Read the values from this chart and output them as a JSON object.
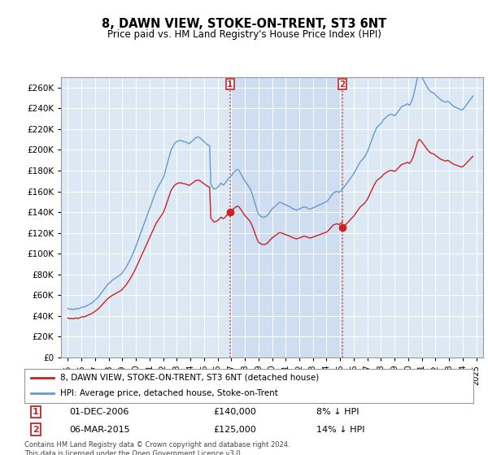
{
  "title": "8, DAWN VIEW, STOKE-ON-TRENT, ST3 6NT",
  "subtitle": "Price paid vs. HM Land Registry's House Price Index (HPI)",
  "ylim": [
    0,
    270000
  ],
  "yticks": [
    0,
    20000,
    40000,
    60000,
    80000,
    100000,
    120000,
    140000,
    160000,
    180000,
    200000,
    220000,
    240000,
    260000
  ],
  "xlim_start": 1994.5,
  "xlim_end": 2025.5,
  "bg_color": "#dce9f5",
  "grid_color": "#ffffff",
  "hpi_color": "#6699cc",
  "price_color": "#cc2222",
  "shade_color": "#dce9f5",
  "transaction1_year": 2006.917,
  "transaction1_price": 140000,
  "transaction2_year": 2015.17,
  "transaction2_price": 125000,
  "legend_line1": "8, DAWN VIEW, STOKE-ON-TRENT, ST3 6NT (detached house)",
  "legend_line2": "HPI: Average price, detached house, Stoke-on-Trent",
  "note1_label": "1",
  "note1_date": "01-DEC-2006",
  "note1_price": "£140,000",
  "note1_pct": "8% ↓ HPI",
  "note2_label": "2",
  "note2_date": "06-MAR-2015",
  "note2_price": "£125,000",
  "note2_pct": "14% ↓ HPI",
  "footer": "Contains HM Land Registry data © Crown copyright and database right 2024.\nThis data is licensed under the Open Government Licence v3.0.",
  "hpi_data": {
    "years": [
      1995.0,
      1995.083,
      1995.167,
      1995.25,
      1995.333,
      1995.417,
      1995.5,
      1995.583,
      1995.667,
      1995.75,
      1995.833,
      1995.917,
      1996.0,
      1996.083,
      1996.167,
      1996.25,
      1996.333,
      1996.417,
      1996.5,
      1996.583,
      1996.667,
      1996.75,
      1996.833,
      1996.917,
      1997.0,
      1997.083,
      1997.167,
      1997.25,
      1997.333,
      1997.417,
      1997.5,
      1997.583,
      1997.667,
      1997.75,
      1997.833,
      1997.917,
      1998.0,
      1998.083,
      1998.167,
      1998.25,
      1998.333,
      1998.417,
      1998.5,
      1998.583,
      1998.667,
      1998.75,
      1998.833,
      1998.917,
      1999.0,
      1999.083,
      1999.167,
      1999.25,
      1999.333,
      1999.417,
      1999.5,
      1999.583,
      1999.667,
      1999.75,
      1999.833,
      1999.917,
      2000.0,
      2000.083,
      2000.167,
      2000.25,
      2000.333,
      2000.417,
      2000.5,
      2000.583,
      2000.667,
      2000.75,
      2000.833,
      2000.917,
      2001.0,
      2001.083,
      2001.167,
      2001.25,
      2001.333,
      2001.417,
      2001.5,
      2001.583,
      2001.667,
      2001.75,
      2001.833,
      2001.917,
      2002.0,
      2002.083,
      2002.167,
      2002.25,
      2002.333,
      2002.417,
      2002.5,
      2002.583,
      2002.667,
      2002.75,
      2002.833,
      2002.917,
      2003.0,
      2003.083,
      2003.167,
      2003.25,
      2003.333,
      2003.417,
      2003.5,
      2003.583,
      2003.667,
      2003.75,
      2003.833,
      2003.917,
      2004.0,
      2004.083,
      2004.167,
      2004.25,
      2004.333,
      2004.417,
      2004.5,
      2004.583,
      2004.667,
      2004.75,
      2004.833,
      2004.917,
      2005.0,
      2005.083,
      2005.167,
      2005.25,
      2005.333,
      2005.417,
      2005.5,
      2005.583,
      2005.667,
      2005.75,
      2005.833,
      2005.917,
      2006.0,
      2006.083,
      2006.167,
      2006.25,
      2006.333,
      2006.417,
      2006.5,
      2006.583,
      2006.667,
      2006.75,
      2006.833,
      2006.917,
      2007.0,
      2007.083,
      2007.167,
      2007.25,
      2007.333,
      2007.417,
      2007.5,
      2007.583,
      2007.667,
      2007.75,
      2007.833,
      2007.917,
      2008.0,
      2008.083,
      2008.167,
      2008.25,
      2008.333,
      2008.417,
      2008.5,
      2008.583,
      2008.667,
      2008.75,
      2008.833,
      2008.917,
      2009.0,
      2009.083,
      2009.167,
      2009.25,
      2009.333,
      2009.417,
      2009.5,
      2009.583,
      2009.667,
      2009.75,
      2009.833,
      2009.917,
      2010.0,
      2010.083,
      2010.167,
      2010.25,
      2010.333,
      2010.417,
      2010.5,
      2010.583,
      2010.667,
      2010.75,
      2010.833,
      2010.917,
      2011.0,
      2011.083,
      2011.167,
      2011.25,
      2011.333,
      2011.417,
      2011.5,
      2011.583,
      2011.667,
      2011.75,
      2011.833,
      2011.917,
      2012.0,
      2012.083,
      2012.167,
      2012.25,
      2012.333,
      2012.417,
      2012.5,
      2012.583,
      2012.667,
      2012.75,
      2012.833,
      2012.917,
      2013.0,
      2013.083,
      2013.167,
      2013.25,
      2013.333,
      2013.417,
      2013.5,
      2013.583,
      2013.667,
      2013.75,
      2013.833,
      2013.917,
      2014.0,
      2014.083,
      2014.167,
      2014.25,
      2014.333,
      2014.417,
      2014.5,
      2014.583,
      2014.667,
      2014.75,
      2014.833,
      2014.917,
      2015.0,
      2015.083,
      2015.167,
      2015.25,
      2015.333,
      2015.417,
      2015.5,
      2015.583,
      2015.667,
      2015.75,
      2015.833,
      2015.917,
      2016.0,
      2016.083,
      2016.167,
      2016.25,
      2016.333,
      2016.417,
      2016.5,
      2016.583,
      2016.667,
      2016.75,
      2016.833,
      2016.917,
      2017.0,
      2017.083,
      2017.167,
      2017.25,
      2017.333,
      2017.417,
      2017.5,
      2017.583,
      2017.667,
      2017.75,
      2017.833,
      2017.917,
      2018.0,
      2018.083,
      2018.167,
      2018.25,
      2018.333,
      2018.417,
      2018.5,
      2018.583,
      2018.667,
      2018.75,
      2018.833,
      2018.917,
      2019.0,
      2019.083,
      2019.167,
      2019.25,
      2019.333,
      2019.417,
      2019.5,
      2019.583,
      2019.667,
      2019.75,
      2019.833,
      2019.917,
      2020.0,
      2020.083,
      2020.167,
      2020.25,
      2020.333,
      2020.417,
      2020.5,
      2020.583,
      2020.667,
      2020.75,
      2020.833,
      2020.917,
      2021.0,
      2021.083,
      2021.167,
      2021.25,
      2021.333,
      2021.417,
      2021.5,
      2021.583,
      2021.667,
      2021.75,
      2021.833,
      2021.917,
      2022.0,
      2022.083,
      2022.167,
      2022.25,
      2022.333,
      2022.417,
      2022.5,
      2022.583,
      2022.667,
      2022.75,
      2022.833,
      2022.917,
      2023.0,
      2023.083,
      2023.167,
      2023.25,
      2023.333,
      2023.417,
      2023.5,
      2023.583,
      2023.667,
      2023.75,
      2023.833,
      2023.917,
      2024.0,
      2024.083,
      2024.167,
      2024.25,
      2024.333,
      2024.417,
      2024.5,
      2024.583,
      2024.667,
      2024.75
    ],
    "values": [
      47000,
      46500,
      46200,
      46500,
      46300,
      46000,
      46500,
      47000,
      46800,
      46500,
      47000,
      47500,
      48000,
      48500,
      48200,
      48800,
      49200,
      49800,
      50400,
      51000,
      51600,
      52200,
      53000,
      54000,
      55000,
      56000,
      57000,
      58200,
      59500,
      61000,
      62500,
      64000,
      65500,
      67000,
      68500,
      70000,
      71000,
      72000,
      73000,
      74000,
      74800,
      75500,
      76200,
      77000,
      77800,
      78500,
      79200,
      80000,
      81500,
      83000,
      84500,
      86000,
      88000,
      90000,
      92000,
      94000,
      96500,
      99000,
      101500,
      104000,
      107000,
      110000,
      113000,
      116000,
      119000,
      122000,
      125000,
      128000,
      131000,
      134000,
      137000,
      140000,
      143000,
      146000,
      149000,
      152000,
      155000,
      158000,
      161000,
      163000,
      165000,
      167000,
      169000,
      171000,
      173000,
      176000,
      180000,
      184000,
      188000,
      192000,
      196000,
      200000,
      202000,
      204000,
      206000,
      207000,
      208000,
      208500,
      209000,
      209200,
      209000,
      208500,
      208000,
      208000,
      207500,
      207000,
      206500,
      206000,
      207000,
      208000,
      209000,
      210000,
      211000,
      212000,
      212000,
      212500,
      212000,
      211000,
      210000,
      209000,
      208000,
      207000,
      206000,
      205000,
      204500,
      204000,
      167000,
      165000,
      163500,
      162000,
      162500,
      163000,
      164000,
      165000,
      166500,
      168000,
      167000,
      166000,
      167000,
      168500,
      170000,
      171500,
      173000,
      174000,
      175000,
      176500,
      178000,
      179000,
      180000,
      181000,
      181000,
      180000,
      178000,
      176000,
      174000,
      172000,
      170000,
      168500,
      167000,
      165500,
      164000,
      162000,
      159000,
      156000,
      152000,
      148000,
      144500,
      141000,
      138000,
      137000,
      136000,
      135500,
      135000,
      135200,
      135500,
      136000,
      137000,
      138500,
      140000,
      141500,
      143000,
      144000,
      145000,
      146000,
      147000,
      148000,
      149000,
      149500,
      149000,
      148500,
      148000,
      147500,
      147000,
      146500,
      146000,
      145500,
      145000,
      144000,
      143500,
      143000,
      142500,
      142000,
      142000,
      142500,
      143000,
      143500,
      144000,
      144500,
      145000,
      145000,
      144500,
      144000,
      143500,
      143000,
      143000,
      143500,
      144000,
      144500,
      145000,
      145500,
      146000,
      146500,
      147000,
      147500,
      148000,
      148500,
      149000,
      149500,
      150000,
      151000,
      152500,
      154000,
      155500,
      157000,
      158500,
      159000,
      159500,
      160000,
      159500,
      159000,
      160000,
      161000,
      162500,
      163500,
      165000,
      166500,
      168000,
      169500,
      171000,
      172500,
      174000,
      175500,
      177000,
      179000,
      181000,
      183000,
      185000,
      187000,
      189000,
      190000,
      191000,
      192500,
      194000,
      196000,
      198000,
      201000,
      204000,
      207000,
      210000,
      213000,
      216000,
      218500,
      221000,
      222500,
      223500,
      224500,
      225500,
      227000,
      229000,
      230000,
      231000,
      232000,
      233000,
      233500,
      234000,
      234500,
      234000,
      233500,
      233000,
      234000,
      235500,
      237000,
      238500,
      240000,
      241500,
      242000,
      242500,
      243000,
      243500,
      244500,
      244000,
      243000,
      244500,
      247000,
      250000,
      254000,
      259000,
      264000,
      269000,
      272000,
      273000,
      272000,
      270000,
      268000,
      266000,
      264000,
      262000,
      260000,
      258500,
      257000,
      256000,
      255500,
      255000,
      254500,
      253000,
      252000,
      251000,
      250000,
      249000,
      248000,
      247500,
      247000,
      246500,
      246000,
      246500,
      247000,
      246000,
      245000,
      244000,
      243000,
      242000,
      241500,
      241000,
      240500,
      240000,
      239500,
      239000,
      238500,
      239000,
      240000,
      241500,
      243000,
      244500,
      246000,
      247500,
      249000,
      250500,
      252000
    ]
  }
}
